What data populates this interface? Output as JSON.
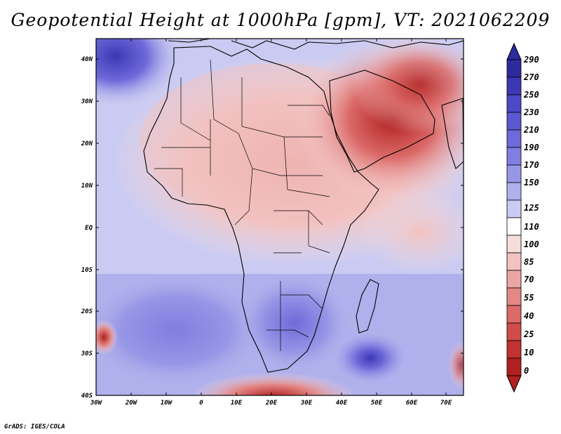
{
  "title": "Geopotential Height at 1000hPa [gpm], VT: 2021062209",
  "credit": "GrADS: IGES/COLA",
  "map": {
    "variable": "Geopotential Height",
    "level": "1000hPa",
    "units": "gpm",
    "valid_time": "2021062209",
    "lat_labels": [
      "40N",
      "30N",
      "20N",
      "10N",
      "EQ",
      "10S",
      "20S",
      "30S",
      "40S"
    ],
    "lon_labels": [
      "30W",
      "20W",
      "10W",
      "0",
      "10E",
      "20E",
      "30E",
      "40E",
      "50E",
      "60E",
      "70E"
    ]
  },
  "colorbar": {
    "labels": [
      "290",
      "270",
      "250",
      "230",
      "210",
      "190",
      "170",
      "150",
      "125",
      "110",
      "100",
      "85",
      "70",
      "55",
      "40",
      "25",
      "10",
      "0"
    ],
    "colors": [
      "#2d2a9e",
      "#3c38b4",
      "#4c48c6",
      "#5c58d2",
      "#6e6ada",
      "#807ee0",
      "#9796e6",
      "#b0b0ec",
      "#cacbf2",
      "#ffffff",
      "#f7dcdc",
      "#f2c2c0",
      "#eba6a4",
      "#e48886",
      "#db6a68",
      "#cf4c4a",
      "#c23230",
      "#b02020"
    ]
  }
}
